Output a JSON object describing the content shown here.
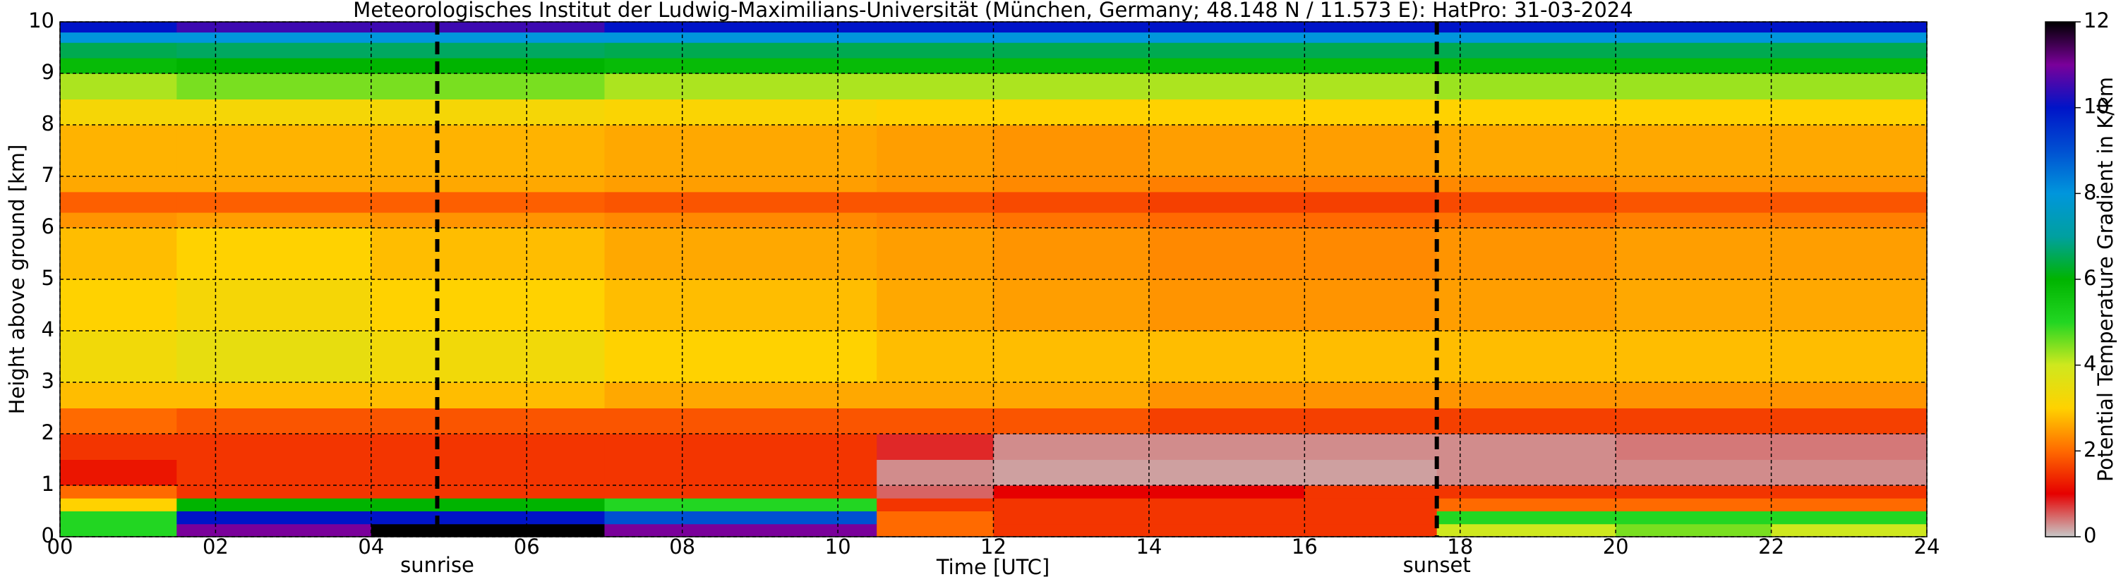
{
  "chart_data": {
    "type": "heatmap",
    "title": "Meteorologisches Institut der Ludwig-Maximilians-Universität (München, Germany; 48.148 N / 11.573 E):    HatPro: 31-03-2024",
    "x_label": "Time [UTC]",
    "y_label": "Height above ground [km]",
    "colorbar_label": "Potential Temperature Gradient in K/km",
    "xlim": [
      0,
      24
    ],
    "xticks": [
      {
        "value": 0,
        "label": "00"
      },
      {
        "value": 2,
        "label": "02"
      },
      {
        "value": 4,
        "label": "04"
      },
      {
        "value": 6,
        "label": "06"
      },
      {
        "value": 8,
        "label": "08"
      },
      10,
      12,
      14,
      16,
      18,
      20,
      22,
      24
    ],
    "ylim": [
      0,
      10
    ],
    "yticks": [
      0,
      1,
      2,
      3,
      4,
      5,
      6,
      7,
      8,
      9,
      10
    ],
    "grid": true,
    "clim": [
      0,
      12
    ],
    "cticks": [
      0,
      2,
      4,
      6,
      8,
      10,
      12
    ],
    "colormap": [
      "#c8c8c8",
      "#e60000",
      "#ff6a00",
      "#ffd200",
      "#cfe81e",
      "#22d622",
      "#00b400",
      "#00a0a0",
      "#0096dc",
      "#0050d2",
      "#0014c8",
      "#7a009a",
      "#000000"
    ],
    "x_edges": [
      0,
      1.5,
      4,
      7,
      10.5,
      12,
      14,
      16,
      17.7,
      20,
      22,
      24
    ],
    "y_edges": [
      0,
      0.25,
      0.5,
      0.75,
      1,
      1.5,
      2,
      2.5,
      3,
      4,
      5,
      6,
      6.3,
      6.7,
      7,
      8,
      8.5,
      9,
      9.3,
      9.6,
      9.8,
      10
    ],
    "values": [
      [
        5,
        11,
        12,
        11,
        2,
        1.5,
        1.5,
        1.5,
        4,
        4.5,
        4
      ],
      [
        5,
        10,
        10,
        9,
        2,
        1.5,
        1.5,
        1.5,
        5,
        5,
        5
      ],
      [
        3,
        6,
        6,
        5,
        1.5,
        1.5,
        1.5,
        1.5,
        2,
        2,
        2
      ],
      [
        2,
        1.5,
        1.5,
        1.5,
        0.5,
        1,
        1,
        1.5,
        1.5,
        1.5,
        1.5
      ],
      [
        1.2,
        1.5,
        1.5,
        1.5,
        0.3,
        0.2,
        0.2,
        0.2,
        0.3,
        0.3,
        0.3
      ],
      [
        1.5,
        1.5,
        1.5,
        1.5,
        0.8,
        0.3,
        0.3,
        0.3,
        0.3,
        0.4,
        0.4
      ],
      [
        2,
        1.8,
        1.8,
        1.8,
        1.8,
        1.8,
        1.6,
        1.6,
        1.6,
        1.6,
        1.6
      ],
      [
        2.8,
        2.8,
        2.8,
        2.6,
        2.6,
        2.6,
        2.4,
        2.4,
        2.4,
        2.4,
        2.4
      ],
      [
        3.3,
        3.5,
        3.3,
        3,
        2.8,
        2.8,
        2.8,
        2.8,
        2.8,
        2.8,
        2.8
      ],
      [
        3,
        3.2,
        3,
        2.8,
        2.6,
        2.5,
        2.4,
        2.4,
        2.5,
        2.6,
        2.6
      ],
      [
        2.8,
        3,
        2.8,
        2.6,
        2.5,
        2.4,
        2.3,
        2.3,
        2.4,
        2.5,
        2.5
      ],
      [
        2.4,
        2.5,
        2.4,
        2.3,
        2.2,
        2.1,
        2,
        2,
        2.1,
        2.2,
        2.2
      ],
      [
        1.9,
        1.9,
        1.9,
        1.8,
        1.8,
        1.7,
        1.6,
        1.6,
        1.7,
        1.8,
        1.8
      ],
      [
        2.6,
        2.6,
        2.6,
        2.5,
        2.4,
        2.3,
        2.2,
        2.2,
        2.3,
        2.4,
        2.4
      ],
      [
        2.7,
        2.7,
        2.7,
        2.6,
        2.5,
        2.4,
        2.5,
        2.5,
        2.6,
        2.6,
        2.6
      ],
      [
        3.2,
        3.2,
        3.2,
        3.1,
        3,
        3,
        3,
        3,
        3,
        3,
        3
      ],
      [
        4.2,
        4.5,
        4.5,
        4.2,
        4.2,
        4.2,
        4.2,
        4.2,
        4.3,
        4.3,
        4.3
      ],
      [
        5.8,
        6,
        6,
        5.8,
        5.8,
        5.8,
        5.8,
        5.8,
        5.8,
        5.8,
        5.8
      ],
      [
        6.5,
        6.6,
        6.6,
        6.5,
        6.5,
        6.5,
        6.5,
        6.5,
        6.5,
        6.5,
        6.5
      ],
      [
        8,
        8,
        8,
        8,
        8,
        8,
        8,
        8,
        8,
        8,
        8
      ],
      [
        10,
        10.5,
        10.5,
        10,
        10,
        10,
        10,
        10,
        10,
        10,
        10
      ]
    ],
    "annotations": [
      {
        "text": "sunrise",
        "x": 4.85
      },
      {
        "text": "sunset",
        "x": 17.7
      }
    ]
  }
}
